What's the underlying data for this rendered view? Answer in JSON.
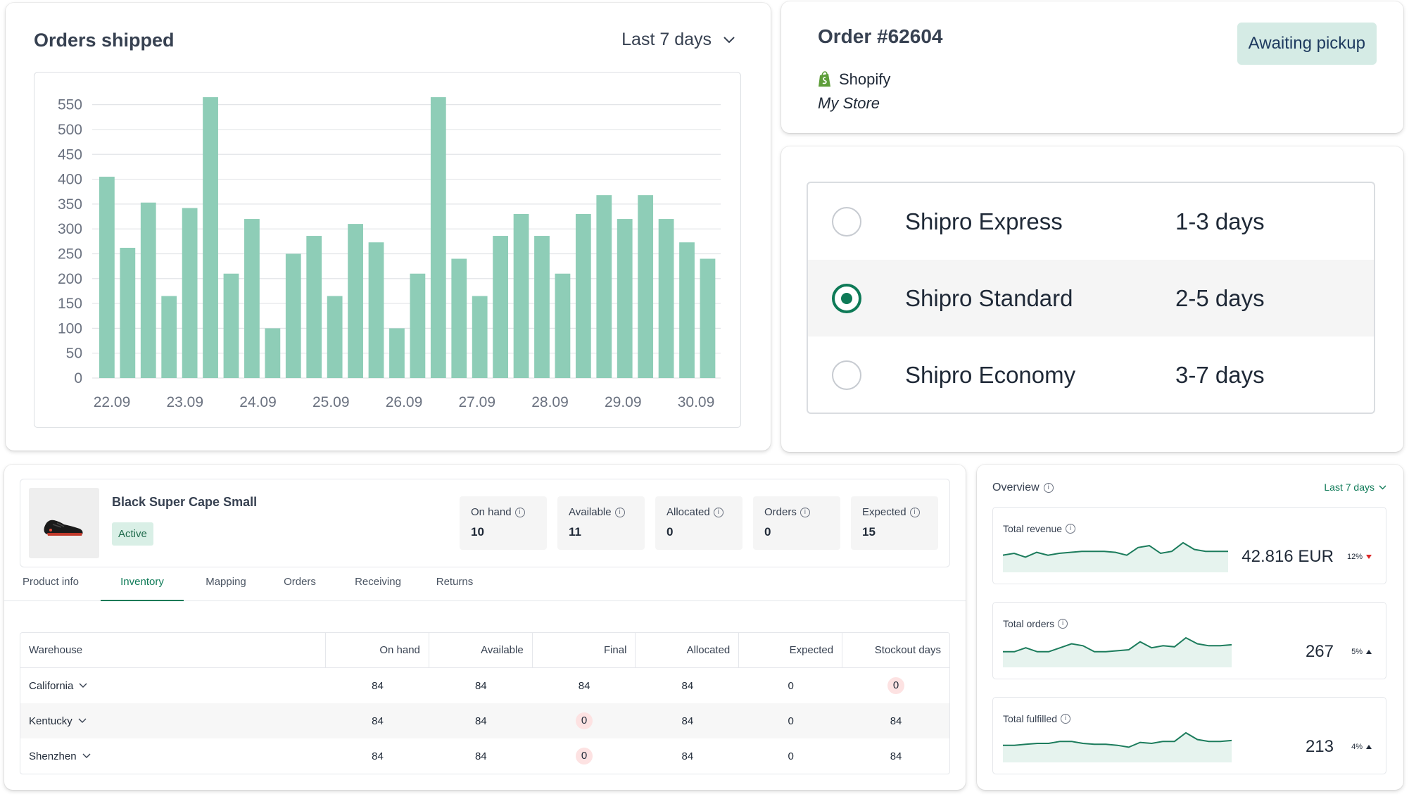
{
  "chart_card": {
    "title": "Orders shipped",
    "range_label": "Last 7 days"
  },
  "chart_data": {
    "type": "bar",
    "title": "Orders shipped",
    "xlabel": "",
    "ylabel": "",
    "ylim": [
      0,
      575
    ],
    "yticks": [
      0,
      50,
      100,
      150,
      200,
      250,
      300,
      350,
      400,
      450,
      500,
      550
    ],
    "xtick_labels": [
      "22.09",
      "23.09",
      "24.09",
      "25.09",
      "26.09",
      "27.09",
      "28.09",
      "29.09",
      "30.09"
    ],
    "values": [
      405,
      262,
      353,
      165,
      342,
      565,
      210,
      320,
      100,
      250,
      286,
      165,
      310,
      273,
      100,
      210,
      565,
      240,
      165,
      286,
      330,
      286,
      210,
      330,
      368,
      320,
      368,
      320,
      273,
      240
    ],
    "grid": true,
    "bar_color": "#8ecdb7"
  },
  "order": {
    "title": "Order #62604",
    "platform": "Shopify",
    "store": "My Store",
    "status": "Awaiting pickup"
  },
  "shipping": {
    "options": [
      {
        "name": "Shipro Express",
        "days": "1-3 days",
        "selected": false
      },
      {
        "name": "Shipro Standard",
        "days": "2-5 days",
        "selected": true
      },
      {
        "name": "Shipro Economy",
        "days": "3-7 days",
        "selected": false
      }
    ]
  },
  "product": {
    "name": "Black Super Cape Small",
    "status": "Active",
    "stats": [
      {
        "label": "On hand",
        "value": "10"
      },
      {
        "label": "Available",
        "value": "11"
      },
      {
        "label": "Allocated",
        "value": "0"
      },
      {
        "label": "Orders",
        "value": "0"
      },
      {
        "label": "Expected",
        "value": "15"
      }
    ],
    "tabs": [
      "Product info",
      "Inventory",
      "Mapping",
      "Orders",
      "Receiving",
      "Returns"
    ],
    "active_tab": "Inventory"
  },
  "inventory_table": {
    "headers": [
      "Warehouse",
      "On hand",
      "Available",
      "Final",
      "Allocated",
      "Expected",
      "Stockout days"
    ],
    "rows": [
      {
        "warehouse": "California",
        "on_hand": "84",
        "available": "84",
        "final": "84",
        "allocated": "84",
        "expected": "0",
        "stockout": "0"
      },
      {
        "warehouse": "Kentucky",
        "on_hand": "84",
        "available": "84",
        "final": "0",
        "allocated": "84",
        "expected": "0",
        "stockout": "84"
      },
      {
        "warehouse": "Shenzhen",
        "on_hand": "84",
        "available": "84",
        "final": "0",
        "allocated": "84",
        "expected": "0",
        "stockout": "84"
      }
    ]
  },
  "overview": {
    "title": "Overview",
    "range_label": "Last 7 days",
    "metrics": [
      {
        "label": "Total revenue",
        "value": "42.816 EUR",
        "delta": "12%",
        "direction": "down",
        "spark": [
          12,
          14,
          10,
          15,
          12,
          14,
          15,
          16,
          16,
          16,
          15,
          12,
          20,
          22,
          14,
          16,
          25,
          18,
          16,
          16,
          16
        ]
      },
      {
        "label": "Total orders",
        "value": "267",
        "delta": "5%",
        "direction": "up",
        "spark": [
          10,
          10,
          14,
          10,
          10,
          14,
          18,
          16,
          10,
          10,
          11,
          12,
          20,
          14,
          16,
          15,
          24,
          18,
          16,
          16,
          17
        ]
      },
      {
        "label": "Total fulfilled",
        "value": "213",
        "delta": "4%",
        "direction": "up",
        "spark": [
          12,
          12,
          13,
          14,
          14,
          16,
          16,
          14,
          13,
          13,
          12,
          10,
          15,
          14,
          16,
          16,
          25,
          18,
          16,
          16,
          17
        ]
      }
    ]
  },
  "colors": {
    "accent": "#0e7a57",
    "bar": "#8ecdb7",
    "pill_bg": "#d5ebe5",
    "danger_pill": "#fde2e2"
  }
}
